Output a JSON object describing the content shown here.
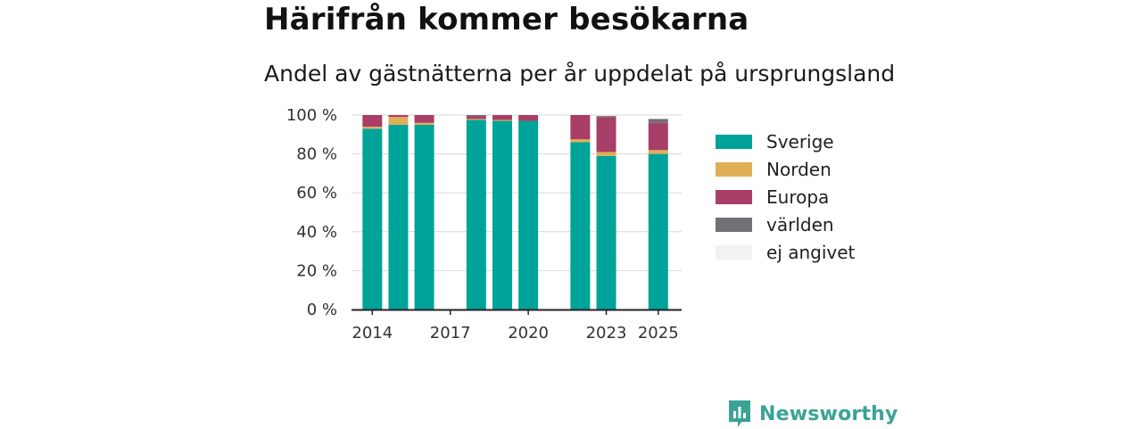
{
  "header": {
    "title": "Härifrån kommer besökarna",
    "subtitle": "Andel av gästnätterna per år uppdelat på ursprungsland"
  },
  "brand": {
    "name": "Newsworthy",
    "color": "#3aa396",
    "icon": "bar-chart-icon"
  },
  "chart_data": {
    "type": "bar",
    "stacked": true,
    "x": [
      2014,
      2015,
      2016,
      2018,
      2019,
      2020,
      2022,
      2023,
      2025
    ],
    "xticks": [
      2014,
      2017,
      2020,
      2023,
      2025
    ],
    "yticks": [
      "0 %",
      "20 %",
      "40 %",
      "60 %",
      "80 %",
      "100 %"
    ],
    "ylim": [
      0,
      100
    ],
    "xlim": [
      2013.2,
      2025.9
    ],
    "grid": true,
    "legend_position": "right",
    "series": [
      {
        "name": "Sverige",
        "color": "#00a39a",
        "values": [
          93,
          95,
          95,
          97.5,
          97,
          97,
          86,
          79,
          80
        ]
      },
      {
        "name": "Norden",
        "color": "#e0ae55",
        "values": [
          1,
          4,
          1,
          0.5,
          0.5,
          0,
          1.5,
          2,
          2
        ]
      },
      {
        "name": "Europa",
        "color": "#a83f68",
        "values": [
          6,
          1,
          4,
          1.5,
          2.5,
          3,
          12.5,
          18,
          14
        ]
      },
      {
        "name": "världen",
        "color": "#717177",
        "values": [
          0,
          0,
          0,
          0.5,
          0,
          0,
          0,
          0.5,
          2
        ]
      },
      {
        "name": "ej angivet",
        "color": "#f2f2f2",
        "values": [
          0,
          0,
          0,
          0,
          0,
          0,
          0,
          0,
          0
        ]
      }
    ]
  }
}
